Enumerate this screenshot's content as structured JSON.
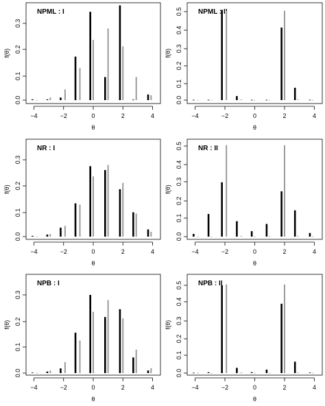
{
  "figure": {
    "colors": {
      "estimate": "#000000",
      "true": "#9a9a9a",
      "frame": "#000000"
    },
    "y_axis_label": "f(θ)",
    "x_axis_label": "θ"
  },
  "chart_data": [
    {
      "type": "bar",
      "title": "NPML : I",
      "xlabel": "θ",
      "ylabel": "f(θ)",
      "xlim": [
        -4.3,
        4.3
      ],
      "ylim": [
        0,
        0.38
      ],
      "xticks": [
        -4,
        -2,
        0,
        2,
        4
      ],
      "yticks": [
        0.0,
        0.1,
        0.2,
        0.3
      ],
      "ytick_labels": [
        "0.0",
        "0.1",
        "0.2",
        "0.3"
      ],
      "series": [
        {
          "x": [
            -4.1,
            -3.1,
            -2.2,
            -1.2,
            -0.2,
            0.8,
            1.8,
            2.7,
            3.7
          ],
          "values": [
            0.003,
            0.003,
            0.01,
            0.17,
            0.345,
            0.09,
            0.37,
            0.002,
            0.022
          ]
        },
        {
          "x": [
            -3.8,
            -2.9,
            -1.9,
            -0.9,
            0.0,
            1.0,
            2.0,
            2.9,
            3.9
          ],
          "values": [
            0.001,
            0.01,
            0.042,
            0.125,
            0.235,
            0.28,
            0.21,
            0.09,
            0.019
          ]
        }
      ]
    },
    {
      "type": "bar",
      "title": "NPML : II",
      "xlabel": "θ",
      "ylabel": "f(θ)",
      "xlim": [
        -4.3,
        4.3
      ],
      "ylim": [
        0,
        0.55
      ],
      "xticks": [
        -4,
        -2,
        0,
        2,
        4
      ],
      "yticks": [
        0.0,
        0.1,
        0.2,
        0.3,
        0.4,
        0.5
      ],
      "ytick_labels": [
        "0.0",
        "0.1",
        "0.2",
        "0.3",
        "0.4",
        "0.5"
      ],
      "series": [
        {
          "x": [
            -4.1,
            -3.1,
            -2.2,
            -1.2,
            -0.2,
            0.8,
            1.8,
            2.7,
            3.7
          ],
          "values": [
            0.002,
            0.002,
            0.51,
            0.023,
            0.002,
            0.002,
            0.41,
            0.07,
            0.002
          ]
        },
        {
          "x": [
            -3.8,
            -2.9,
            -1.9,
            -0.9,
            0.0,
            1.0,
            2.0,
            2.9,
            3.9
          ],
          "values": [
            0.001,
            0.001,
            0.505,
            0.004,
            0.001,
            0.001,
            0.505,
            0.004,
            0.001
          ]
        }
      ]
    },
    {
      "type": "bar",
      "title": "NR : I",
      "xlabel": "θ",
      "ylabel": "f(θ)",
      "xlim": [
        -4.3,
        4.3
      ],
      "ylim": [
        0,
        0.38
      ],
      "xticks": [
        -4,
        -2,
        0,
        2,
        4
      ],
      "yticks": [
        0.0,
        0.1,
        0.2,
        0.3
      ],
      "ytick_labels": [
        "0.0",
        "0.1",
        "0.2",
        "0.3"
      ],
      "series": [
        {
          "x": [
            -4.1,
            -3.1,
            -2.2,
            -1.2,
            -0.2,
            0.8,
            1.8,
            2.7,
            3.7
          ],
          "values": [
            0.003,
            0.008,
            0.035,
            0.13,
            0.275,
            0.26,
            0.185,
            0.095,
            0.028
          ]
        },
        {
          "x": [
            -3.8,
            -2.9,
            -1.9,
            -0.9,
            0.0,
            1.0,
            2.0,
            2.9,
            3.9
          ],
          "values": [
            0.001,
            0.01,
            0.042,
            0.125,
            0.235,
            0.28,
            0.21,
            0.09,
            0.019
          ]
        }
      ]
    },
    {
      "type": "bar",
      "title": "NR : II",
      "xlabel": "θ",
      "ylabel": "f(θ)",
      "xlim": [
        -4.3,
        4.3
      ],
      "ylim": [
        0,
        0.55
      ],
      "xticks": [
        -4,
        -2,
        0,
        2,
        4
      ],
      "yticks": [
        0.0,
        0.1,
        0.2,
        0.3,
        0.4,
        0.5
      ],
      "ytick_labels": [
        "0.0",
        "0.1",
        "0.2",
        "0.3",
        "0.4",
        "0.5"
      ],
      "series": [
        {
          "x": [
            -4.1,
            -3.1,
            -2.2,
            -1.2,
            -0.2,
            0.8,
            1.8,
            2.7,
            3.7
          ],
          "values": [
            0.015,
            0.125,
            0.3,
            0.085,
            0.03,
            0.07,
            0.25,
            0.145,
            0.02
          ]
        },
        {
          "x": [
            -3.8,
            -2.9,
            -1.9,
            -0.9,
            0.0,
            1.0,
            2.0,
            2.9,
            3.9
          ],
          "values": [
            0.001,
            0.001,
            0.505,
            0.004,
            0.001,
            0.001,
            0.505,
            0.004,
            0.001
          ]
        }
      ]
    },
    {
      "type": "bar",
      "title": "NPB : I",
      "xlabel": "θ",
      "ylabel": "f(θ)",
      "xlim": [
        -4.3,
        4.3
      ],
      "ylim": [
        0,
        0.38
      ],
      "xticks": [
        -4,
        -2,
        0,
        2,
        4
      ],
      "yticks": [
        0.0,
        0.1,
        0.2,
        0.3
      ],
      "ytick_labels": [
        "0.0",
        "0.1",
        "0.2",
        "0.3"
      ],
      "series": [
        {
          "x": [
            -4.1,
            -3.1,
            -2.2,
            -1.2,
            -0.2,
            0.8,
            1.8,
            2.7,
            3.7
          ],
          "values": [
            0.002,
            0.006,
            0.018,
            0.155,
            0.3,
            0.215,
            0.245,
            0.06,
            0.01
          ]
        },
        {
          "x": [
            -3.8,
            -2.9,
            -1.9,
            -0.9,
            0.0,
            1.0,
            2.0,
            2.9,
            3.9
          ],
          "values": [
            0.001,
            0.01,
            0.042,
            0.125,
            0.235,
            0.28,
            0.21,
            0.09,
            0.019
          ]
        }
      ]
    },
    {
      "type": "bar",
      "title": "NPB : II",
      "xlabel": "θ",
      "ylabel": "f(θ)",
      "xlim": [
        -4.3,
        4.3
      ],
      "ylim": [
        0,
        0.55
      ],
      "xticks": [
        -4,
        -2,
        0,
        2,
        4
      ],
      "yticks": [
        0.0,
        0.1,
        0.2,
        0.3,
        0.4,
        0.5
      ],
      "ytick_labels": [
        "0.0",
        "0.1",
        "0.2",
        "0.3",
        "0.4",
        "0.5"
      ],
      "series": [
        {
          "x": [
            -4.1,
            -3.1,
            -2.2,
            -1.2,
            -0.2,
            0.8,
            1.8,
            2.7,
            3.7
          ],
          "values": [
            0.002,
            0.005,
            0.5,
            0.03,
            0.005,
            0.02,
            0.395,
            0.065,
            0.003
          ]
        },
        {
          "x": [
            -3.8,
            -2.9,
            -1.9,
            -0.9,
            0.0,
            1.0,
            2.0,
            2.9,
            3.9
          ],
          "values": [
            0.001,
            0.001,
            0.505,
            0.004,
            0.001,
            0.001,
            0.505,
            0.004,
            0.001
          ]
        }
      ]
    }
  ]
}
